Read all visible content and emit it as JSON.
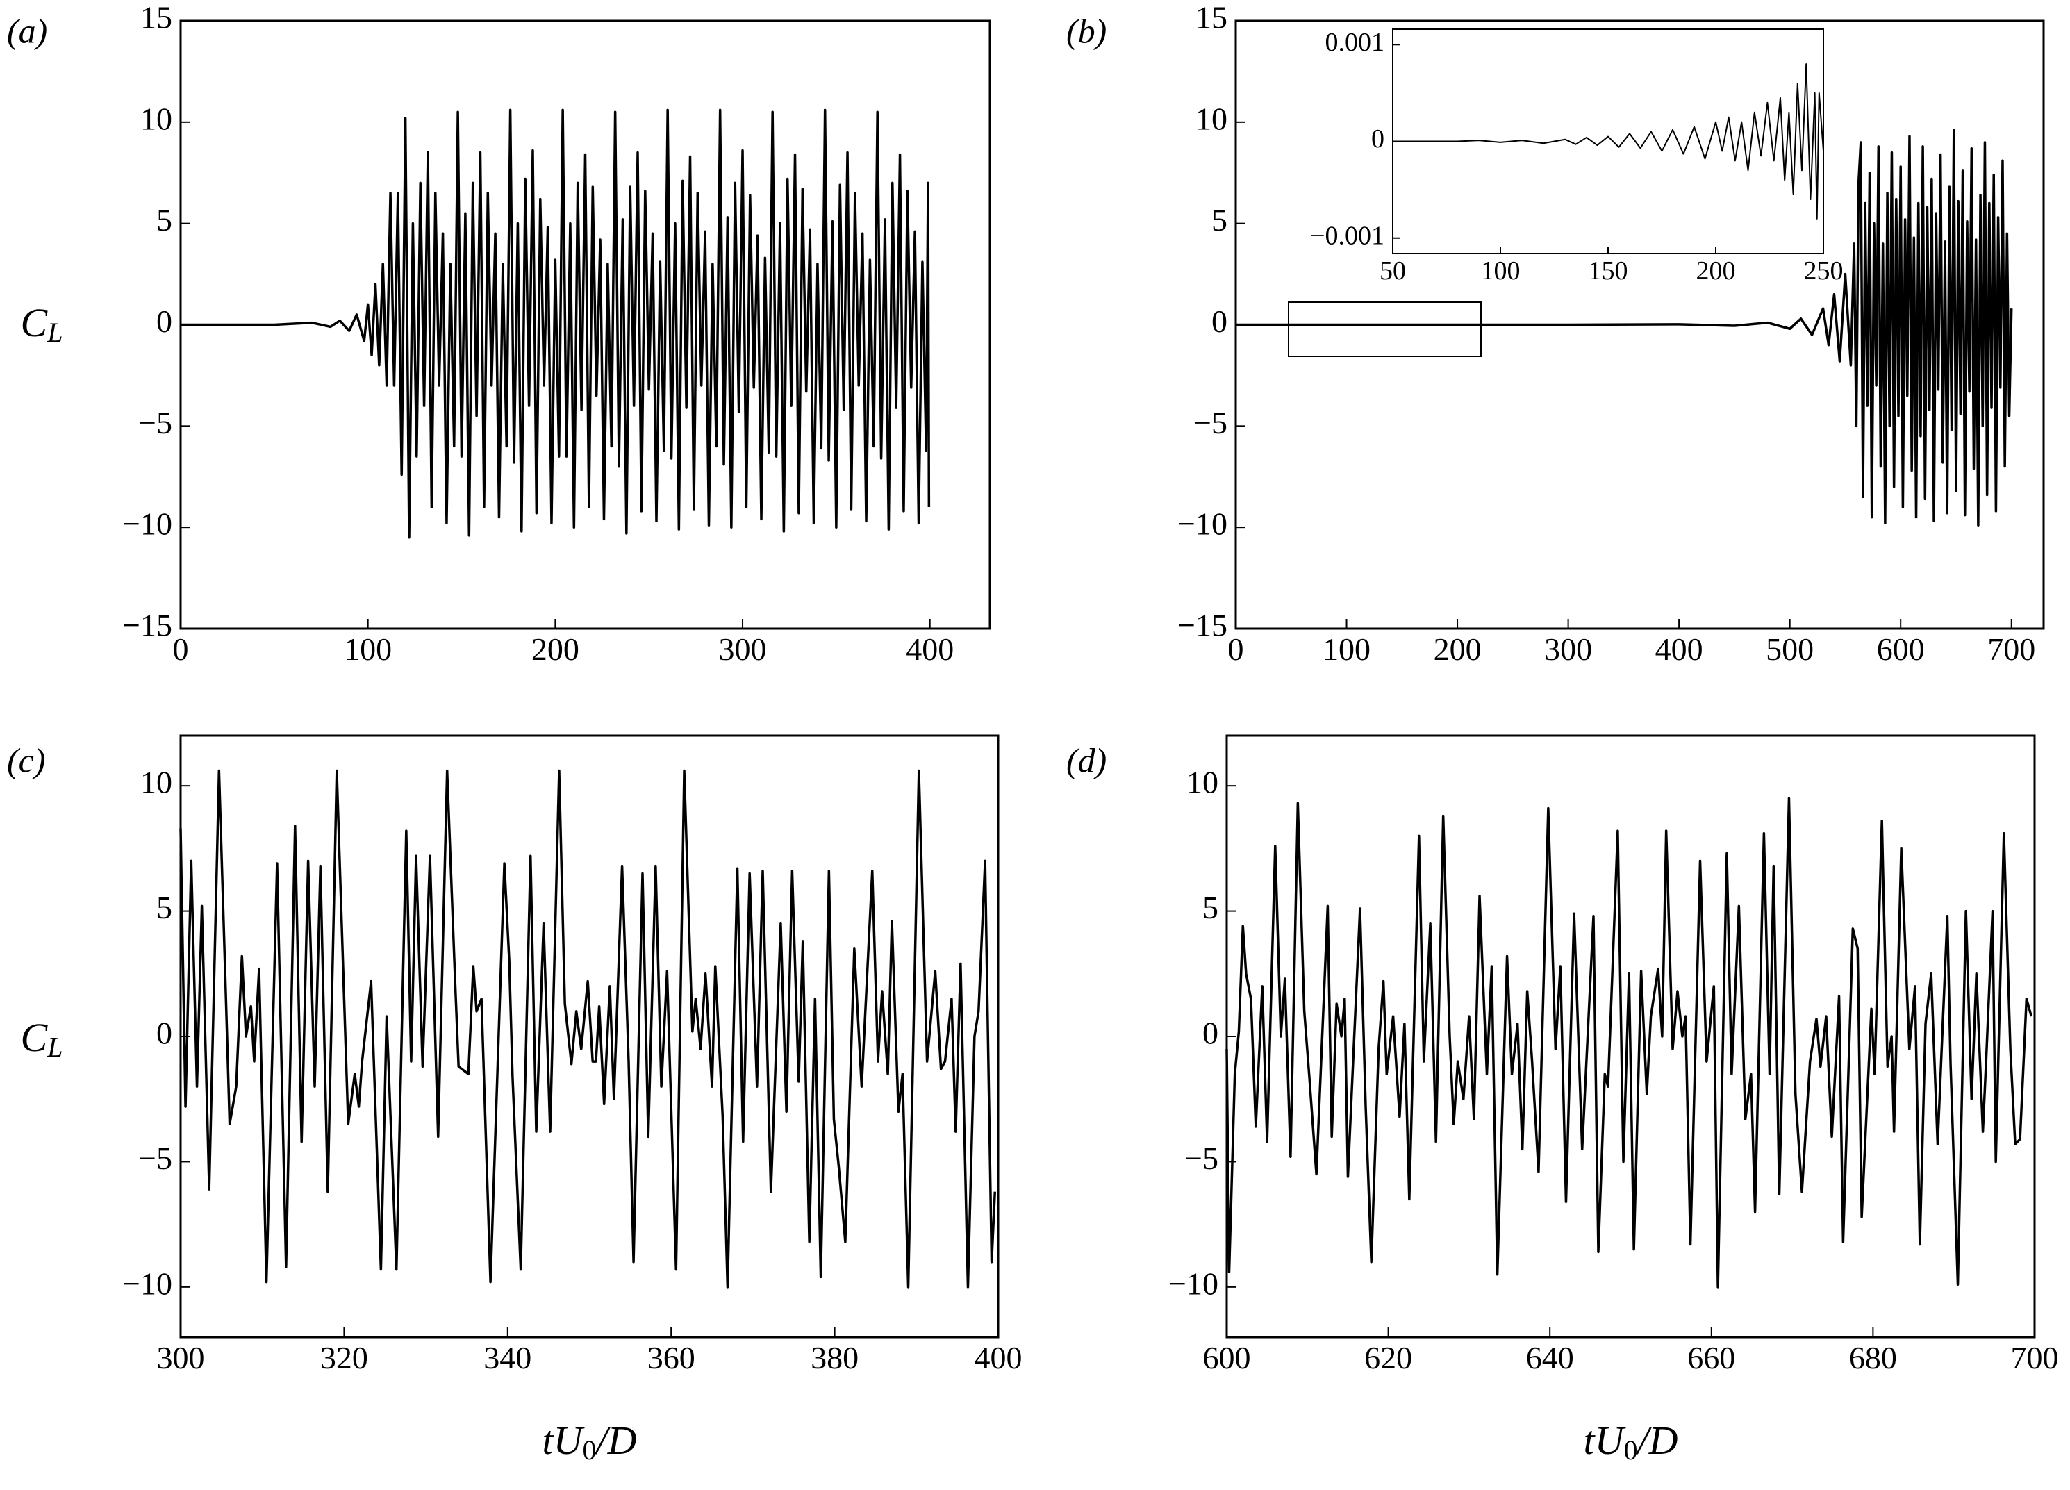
{
  "chart_data": [
    {
      "type": "line",
      "panel_label": "(a)",
      "color": "#000000",
      "y_label": {
        "base": "C",
        "sub": "L"
      },
      "xlim": [
        0,
        432
      ],
      "xticks": [
        0,
        100,
        200,
        300,
        400
      ],
      "ylim": [
        -15,
        15
      ],
      "yticks": [
        {
          "value": -15,
          "label": "−15"
        },
        {
          "value": -10,
          "label": "−10"
        },
        {
          "value": -5,
          "label": "−5"
        },
        0,
        5,
        10,
        15
      ],
      "x": [
        0,
        50,
        70,
        80,
        85,
        90,
        94,
        98,
        100,
        102,
        104,
        106,
        108,
        110,
        112,
        114,
        116,
        118,
        120,
        122,
        124,
        126,
        128,
        130,
        132,
        134,
        136,
        138,
        140,
        142,
        144,
        146,
        148,
        150,
        152,
        154,
        156,
        158,
        160,
        162,
        164,
        166,
        168,
        170,
        172,
        174,
        176,
        178,
        180,
        182,
        184,
        186,
        188,
        190,
        192,
        194,
        196,
        198,
        200,
        202,
        204,
        206,
        208,
        210,
        212,
        214,
        216,
        218,
        220,
        222,
        224,
        226,
        228,
        230,
        232,
        234,
        236,
        238,
        240,
        242,
        244,
        246,
        248,
        250,
        252,
        254,
        256,
        258,
        260,
        262,
        264,
        266,
        268,
        270,
        272,
        274,
        276,
        278,
        280,
        282,
        284,
        286,
        288,
        290,
        292,
        294,
        296,
        298,
        300,
        302,
        304,
        306,
        308,
        310,
        312,
        314,
        316,
        318,
        320,
        322,
        324,
        326,
        328,
        330,
        332,
        334,
        336,
        338,
        340,
        342,
        344,
        346,
        348,
        350,
        352,
        354,
        356,
        358,
        360,
        362,
        364,
        366,
        368,
        370,
        372,
        374,
        376,
        378,
        380,
        382,
        384,
        386,
        388,
        390,
        392,
        394,
        396,
        398,
        399,
        399.5
      ],
      "values": [
        0,
        0,
        0.1,
        -0.1,
        0.2,
        -0.3,
        0.5,
        -0.8,
        1,
        -1.5,
        2,
        -2,
        3,
        -3,
        6.5,
        -3,
        6.5,
        -7.4,
        10.2,
        -10.5,
        5,
        -6.5,
        7,
        -4,
        8.5,
        -9,
        6.5,
        -3,
        4.5,
        -9.8,
        3,
        -6,
        10.5,
        -6.5,
        5.5,
        -10.4,
        7,
        -4.5,
        8.5,
        -9,
        6.5,
        -3,
        4.5,
        -9.5,
        3,
        -6,
        10.6,
        -6.8,
        5,
        -10.2,
        7.2,
        -4,
        8.6,
        -9.3,
        6.2,
        -3,
        4.8,
        -9.8,
        3.2,
        -6.5,
        10.6,
        -6.5,
        5,
        -10,
        7,
        -4.2,
        8.4,
        -9,
        6.8,
        -3.5,
        4.2,
        -9.6,
        3,
        -6,
        10.5,
        -7,
        5.2,
        -10.3,
        6.8,
        -4,
        8.5,
        -9.2,
        6.6,
        -3.2,
        4.5,
        -9.7,
        3.1,
        -6.2,
        10.6,
        -6.6,
        5,
        -10.1,
        7.1,
        -4.1,
        8.3,
        -9.1,
        6.5,
        -3,
        4.6,
        -9.9,
        3,
        -6,
        10.6,
        -6.9,
        5.3,
        -10,
        7,
        -4.3,
        8.6,
        -9,
        6.4,
        -3.1,
        4.4,
        -9.6,
        3.3,
        -6.3,
        10.5,
        -6.5,
        5,
        -10.2,
        7.2,
        -4,
        8.4,
        -9.3,
        6.7,
        -3.3,
        4.7,
        -9.8,
        3,
        -6.1,
        10.6,
        -6.7,
        5.1,
        -10,
        6.9,
        -4.2,
        8.5,
        -9.1,
        6.5,
        -3,
        4.5,
        -9.7,
        3.2,
        -6,
        10.5,
        -6.6,
        5.2,
        -10.1,
        7,
        -4.1,
        8.4,
        -9.2,
        6.6,
        -3.1,
        4.6,
        -9.8,
        3.1,
        -6.2,
        7,
        -9
      ]
    },
    {
      "type": "line",
      "panel_label": "(b)",
      "color": "#000000",
      "xlim": [
        0,
        729
      ],
      "xticks": [
        0,
        100,
        200,
        300,
        400,
        500,
        600,
        700
      ],
      "ylim": [
        -15,
        15
      ],
      "yticks": [
        {
          "value": -15,
          "label": "−15"
        },
        {
          "value": -10,
          "label": "−10"
        },
        {
          "value": -5,
          "label": "−5"
        },
        0,
        5,
        10,
        15
      ],
      "x": [
        0,
        300,
        400,
        450,
        480,
        500,
        510,
        520,
        530,
        535,
        540,
        545,
        550,
        555,
        558,
        560,
        562,
        564,
        566,
        568,
        570,
        572,
        574,
        576,
        578,
        580,
        582,
        584,
        586,
        588,
        590,
        592,
        594,
        596,
        598,
        600,
        602,
        604,
        606,
        608,
        610,
        612,
        614,
        616,
        618,
        620,
        622,
        624,
        626,
        628,
        630,
        632,
        634,
        636,
        638,
        640,
        642,
        644,
        646,
        648,
        650,
        652,
        654,
        656,
        658,
        660,
        662,
        664,
        666,
        668,
        670,
        672,
        674,
        676,
        678,
        680,
        682,
        684,
        686,
        688,
        690,
        692,
        694,
        696,
        698,
        700
      ],
      "values": [
        0,
        0,
        0.02,
        -0.05,
        0.1,
        -0.2,
        0.3,
        -0.5,
        0.8,
        -1,
        1.5,
        -1.8,
        2.5,
        -2,
        4,
        -5,
        7,
        9,
        -8.5,
        6,
        -4,
        7.5,
        -9.5,
        5,
        -3,
        8.8,
        -7,
        4,
        -9.8,
        6.5,
        -5,
        8.5,
        -8,
        6.2,
        -4.5,
        7.8,
        -9,
        5.2,
        -3.5,
        9.3,
        -7.2,
        4.3,
        -9.5,
        6,
        -5.5,
        8.8,
        -8.6,
        5.8,
        -4.2,
        7.2,
        -9.7,
        5.5,
        -3.2,
        8.4,
        -6.8,
        4.1,
        -9.3,
        6.8,
        -5.2,
        9.6,
        -8.2,
        6.1,
        -4.4,
        7.6,
        -9.4,
        5.1,
        -3.3,
        8.7,
        -7.1,
        4.2,
        -9.9,
        6.4,
        -5,
        9,
        -8.4,
        6,
        -4.1,
        7.4,
        -9.2,
        5.3,
        -3.1,
        8.1,
        -7,
        4.5,
        -4.5,
        0.8
      ]
    },
    {
      "type": "line",
      "panel_label": "(c)",
      "color": "#000000",
      "y_label": {
        "base": "C",
        "sub": "L"
      },
      "x_label": {
        "main": "tU",
        "sub": "0",
        "tail": "/D"
      },
      "xlim": [
        300,
        400
      ],
      "xticks": [
        300,
        320,
        340,
        360,
        380,
        400
      ],
      "ylim": [
        -12,
        12
      ],
      "yticks": [
        {
          "value": -10,
          "label": "−10"
        },
        {
          "value": -5,
          "label": "−5"
        },
        0,
        5,
        10
      ],
      "x": [
        300,
        300.6,
        301.3,
        302,
        302.6,
        303.5,
        304.7,
        305.5,
        306,
        306.8,
        307.5,
        308,
        308.6,
        309,
        309.6,
        310.5,
        311.8,
        312.9,
        314,
        314.8,
        315.6,
        316.4,
        317.1,
        318,
        319.1,
        320,
        320.5,
        321.3,
        321.8,
        322.2,
        323.3,
        324.5,
        325.2,
        326.4,
        327.6,
        328.2,
        328.8,
        329.6,
        330.5,
        331.5,
        332.6,
        333.6,
        334,
        335.2,
        335.8,
        336.2,
        336.8,
        337.9,
        339.6,
        340.2,
        340.6,
        341.6,
        342.8,
        343.5,
        344.4,
        345.2,
        346.3,
        347,
        347.8,
        348.4,
        349,
        349.8,
        350.4,
        350.8,
        351.2,
        351.8,
        352.5,
        353,
        354,
        354.8,
        355.4,
        356.5,
        357.2,
        358.1,
        358.8,
        359.5,
        360.6,
        361.6,
        362.6,
        363,
        363.6,
        364.2,
        365,
        365.4,
        366.3,
        366.9,
        368.1,
        368.8,
        369.6,
        370.5,
        371.2,
        372.2,
        373.4,
        374.1,
        374.8,
        375.6,
        376.1,
        376.9,
        377.6,
        378.3,
        379.3,
        379.9,
        380.5,
        381.3,
        382.4,
        383.3,
        384.6,
        385.3,
        385.8,
        386.5,
        387,
        387.8,
        388.3,
        389,
        390.3,
        391.3,
        392.3,
        393,
        393.5,
        394.3,
        394.8,
        395.4,
        396.3,
        397.1,
        397.6,
        398.4,
        399.2,
        399.6
      ],
      "values": [
        8.3,
        -2.8,
        7,
        -2,
        5.2,
        -6.1,
        10.6,
        2,
        -3.5,
        -2,
        3.2,
        0,
        1.2,
        -1,
        2.7,
        -9.8,
        6.9,
        -9.2,
        8.4,
        -4.2,
        7,
        -2,
        6.8,
        -6.2,
        10.6,
        1.5,
        -3.5,
        -1.5,
        -2.8,
        -1,
        2.2,
        -9.3,
        0.8,
        -9.3,
        8.2,
        -1,
        7.2,
        -1.2,
        7.2,
        -4,
        10.6,
        2,
        -1.2,
        -1.5,
        2.8,
        1,
        1.5,
        -9.8,
        6.9,
        3,
        -1.6,
        -9.3,
        7.2,
        -3.8,
        4.5,
        -3.8,
        10.6,
        1.3,
        -1.1,
        1,
        -0.5,
        2.2,
        -1,
        -1,
        1.2,
        -2.7,
        2,
        -2.5,
        6.8,
        -1,
        -9,
        6.5,
        -4,
        6.8,
        -2,
        2.6,
        -9.3,
        10.6,
        0.2,
        1.5,
        -0.5,
        2.5,
        -2,
        2.8,
        -3.2,
        -10,
        6.7,
        -4.2,
        6.5,
        -2,
        6.6,
        -6.2,
        4.5,
        -3,
        6.6,
        -1.8,
        3.8,
        -8.2,
        1.5,
        -9.6,
        6.6,
        -3.3,
        -5.2,
        -8.2,
        3.5,
        -2,
        6.6,
        -1,
        1.8,
        -1.5,
        4.6,
        -3,
        -1.5,
        -10,
        10.6,
        -1,
        2.6,
        -1.3,
        -1,
        1.5,
        -3.8,
        2.9,
        -10,
        0,
        1,
        7,
        -9,
        -6.2
      ]
    },
    {
      "type": "line",
      "panel_label": "(d)",
      "color": "#000000",
      "x_label": {
        "main": "tU",
        "sub": "0",
        "tail": "/D"
      },
      "xlim": [
        600,
        700
      ],
      "xticks": [
        600,
        620,
        640,
        660,
        680,
        700
      ],
      "ylim": [
        -12,
        12
      ],
      "yticks": [
        {
          "value": -10,
          "label": "−10"
        },
        {
          "value": -5,
          "label": "−5"
        },
        0,
        5,
        10
      ],
      "x": [
        600,
        600.3,
        601,
        601.5,
        602,
        602.4,
        603,
        603.6,
        604.4,
        605,
        606,
        606.7,
        607.2,
        607.9,
        608.8,
        609.6,
        610.2,
        611.1,
        612.5,
        613,
        613.6,
        614.2,
        614.6,
        615,
        616.5,
        617.2,
        617.9,
        618.8,
        619.4,
        619.8,
        620.6,
        621.4,
        622,
        622.6,
        623.8,
        624.4,
        625.2,
        625.9,
        626.8,
        627.6,
        628.1,
        628.6,
        629.3,
        630,
        630.6,
        631.3,
        632.2,
        632.8,
        633.5,
        634.7,
        635.3,
        636,
        636.6,
        637.2,
        637.8,
        638.6,
        639.8,
        640.7,
        641.3,
        642,
        643,
        644,
        645.4,
        646,
        646.8,
        647.2,
        648.4,
        649.1,
        649.8,
        650.4,
        651.3,
        652,
        652.5,
        653.4,
        653.9,
        654.4,
        655.2,
        655.8,
        656.4,
        656.8,
        657.4,
        658.6,
        659.4,
        660.3,
        660.8,
        661.9,
        662.5,
        663.4,
        664.2,
        664.9,
        665.4,
        666.5,
        667.2,
        667.7,
        668.4,
        669.6,
        670.4,
        671.2,
        672.2,
        673,
        673.5,
        674.2,
        674.9,
        675.8,
        676.3,
        677,
        677.5,
        678.1,
        678.6,
        679.8,
        680.2,
        681.1,
        681.8,
        682.3,
        682.6,
        683.5,
        684.5,
        685.2,
        685.8,
        686.5,
        687.2,
        688,
        689.2,
        689.6,
        690.5,
        691.5,
        692.2,
        692.8,
        693.6,
        694,
        694.8,
        695.2,
        696.2,
        697,
        697.6,
        698.2,
        699,
        699.6
      ],
      "values": [
        -0.5,
        -9.4,
        -1.5,
        0.2,
        4.4,
        2.5,
        1.5,
        -3.6,
        2,
        -4.2,
        7.6,
        0,
        2.3,
        -4.8,
        9.3,
        1,
        -1.5,
        -5.5,
        5.2,
        -4,
        1.3,
        0,
        1.5,
        -5.6,
        5.1,
        -2.8,
        -9,
        -0.5,
        2.2,
        -1.5,
        0.8,
        -3.2,
        0.5,
        -6.5,
        8,
        -1,
        4.5,
        -4.2,
        8.8,
        0,
        -3.5,
        -1,
        -2.5,
        0.8,
        -3.3,
        5.6,
        -1.5,
        2.8,
        -9.5,
        3.2,
        -1.5,
        0.5,
        -4.5,
        1.8,
        -1,
        -5.4,
        9.1,
        -0.5,
        2.8,
        -6.6,
        4.9,
        -4.5,
        4.8,
        -8.6,
        -1.5,
        -2,
        8.2,
        -5,
        2.5,
        -8.5,
        2.6,
        -2.3,
        0.8,
        2.7,
        0,
        8.2,
        -0.5,
        1.8,
        0,
        0.8,
        -8.3,
        7,
        -1,
        2,
        -10,
        7.3,
        -1.5,
        5.2,
        -3.3,
        -1.5,
        -7,
        8.1,
        -1.5,
        6.8,
        -6.3,
        9.5,
        -2.3,
        -6.2,
        -1,
        0.7,
        -1.2,
        0.8,
        -4,
        1.6,
        -8.2,
        -1,
        4.3,
        3.5,
        -7.2,
        1.1,
        -1.5,
        8.6,
        -1.2,
        0,
        -3.8,
        7.5,
        -0.5,
        2,
        -8.3,
        0.5,
        2.5,
        -4.3,
        4.8,
        -1.1,
        -9.9,
        5,
        -2.5,
        2.5,
        -3.8,
        -1,
        5,
        -5,
        8.1,
        -0.5,
        -4.3,
        -4.1,
        1.5,
        0.8
      ]
    },
    {
      "type": "line",
      "color": "#000000",
      "xlim": [
        50,
        250
      ],
      "xticks": [
        50,
        100,
        150,
        200,
        250
      ],
      "ylim": [
        -0.00116,
        0.00116
      ],
      "yticks": [
        {
          "value": -0.001,
          "label": "−0.001"
        },
        0,
        0.001
      ],
      "x": [
        50,
        80,
        90,
        100,
        110,
        120,
        130,
        135,
        140,
        145,
        150,
        155,
        160,
        165,
        170,
        175,
        180,
        185,
        190,
        195,
        200,
        203,
        206,
        209,
        212,
        215,
        218,
        221,
        224,
        227,
        230,
        232,
        234,
        236,
        238,
        240,
        242,
        244,
        246,
        247,
        248,
        249,
        250
      ],
      "values": [
        0,
        0,
        1e-05,
        -1e-05,
        1e-05,
        -2e-05,
        2e-05,
        -3e-05,
        4e-05,
        -4e-05,
        5e-05,
        -6e-05,
        8e-05,
        -7e-05,
        0.0001,
        -0.0001,
        0.00012,
        -0.00013,
        0.00015,
        -0.00018,
        0.0002,
        -0.0001,
        0.00025,
        -0.0002,
        0.0002,
        -0.0003,
        0.0003,
        -0.00015,
        0.0004,
        -0.0002,
        0.00045,
        -0.0004,
        0.0003,
        -0.00055,
        0.0006,
        -0.0003,
        0.0008,
        -0.0006,
        0.0005,
        -0.0008,
        0.0005,
        0.0002,
        -0.0001
      ]
    }
  ]
}
